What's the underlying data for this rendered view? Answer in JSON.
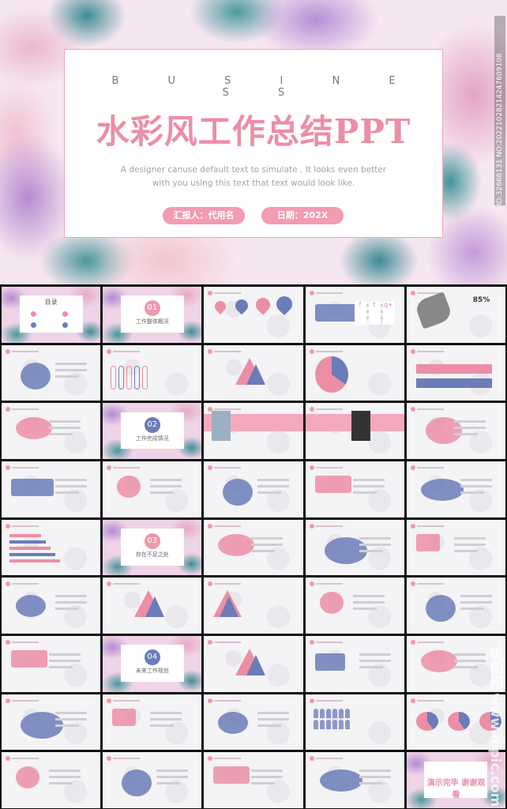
{
  "hero": {
    "kicker": "B U S I N E S S",
    "title": "水彩风工作总结PPT",
    "description": "A designer canuse default text to simulate . It looks even better with you using this text that text would look like.",
    "reporter_label": "汇报人：代用名",
    "date_label": "日期：202X"
  },
  "watermark": {
    "id_text": "ID:32668131 NO:20221028214247609108",
    "site": "昵图网 www.nipic.com"
  },
  "colors": {
    "pink": "#ec8ea6",
    "blue": "#6b7cb8",
    "teal": "#3f8c95",
    "purple": "#b48ad3"
  },
  "slides": [
    {
      "type": "toc",
      "title": "目录"
    },
    {
      "type": "section",
      "number": "01",
      "title": "工作整体概况",
      "color": "#ef98ae"
    },
    {
      "type": "content",
      "variant": "pins"
    },
    {
      "type": "content",
      "variant": "social",
      "icons": [
        "f",
        "t",
        "g+"
      ]
    },
    {
      "type": "content",
      "variant": "keyboard",
      "percent": "85%"
    },
    {
      "type": "content",
      "variant": "leaves"
    },
    {
      "type": "content",
      "variant": "tubes"
    },
    {
      "type": "content",
      "variant": "pyramids"
    },
    {
      "type": "content",
      "variant": "pie"
    },
    {
      "type": "content",
      "variant": "banners"
    },
    {
      "type": "content",
      "variant": "cross"
    },
    {
      "type": "section",
      "number": "02",
      "title": "工作完成情况",
      "color": "#6b7cb8"
    },
    {
      "type": "content",
      "variant": "band-photo"
    },
    {
      "type": "content",
      "variant": "band-person"
    },
    {
      "type": "content",
      "variant": "stats"
    },
    {
      "type": "content",
      "variant": "photo"
    },
    {
      "type": "content",
      "variant": "diamonds"
    },
    {
      "type": "content",
      "variant": "road"
    },
    {
      "type": "content",
      "variant": "table"
    },
    {
      "type": "content",
      "variant": "meeting"
    },
    {
      "type": "content",
      "variant": "hbars"
    },
    {
      "type": "section",
      "number": "03",
      "title": "存在不足之处",
      "color": "#ef98ae"
    },
    {
      "type": "content",
      "variant": "pencil"
    },
    {
      "type": "content",
      "variant": "funnels"
    },
    {
      "type": "content",
      "variant": "steps"
    },
    {
      "type": "content",
      "variant": "photo-left"
    },
    {
      "type": "content",
      "variant": "triangles"
    },
    {
      "type": "content",
      "variant": "big-triangle"
    },
    {
      "type": "content",
      "variant": "timeline"
    },
    {
      "type": "content",
      "variant": "puzzle"
    },
    {
      "type": "content",
      "variant": "swot"
    },
    {
      "type": "section",
      "number": "04",
      "title": "未来工作规划",
      "color": "#6b7cb8"
    },
    {
      "type": "content",
      "variant": "star"
    },
    {
      "type": "content",
      "variant": "microscope"
    },
    {
      "type": "content",
      "variant": "photos"
    },
    {
      "type": "content",
      "variant": "arc"
    },
    {
      "type": "content",
      "variant": "circles"
    },
    {
      "type": "content",
      "variant": "rows"
    },
    {
      "type": "content",
      "variant": "people"
    },
    {
      "type": "content",
      "variant": "pies3"
    },
    {
      "type": "content",
      "variant": "hexagons"
    },
    {
      "type": "content",
      "variant": "gear"
    },
    {
      "type": "content",
      "variant": "puzzle4"
    },
    {
      "type": "content",
      "variant": "photo-donuts"
    },
    {
      "type": "end",
      "title": "演示完毕 谢谢观看"
    }
  ]
}
